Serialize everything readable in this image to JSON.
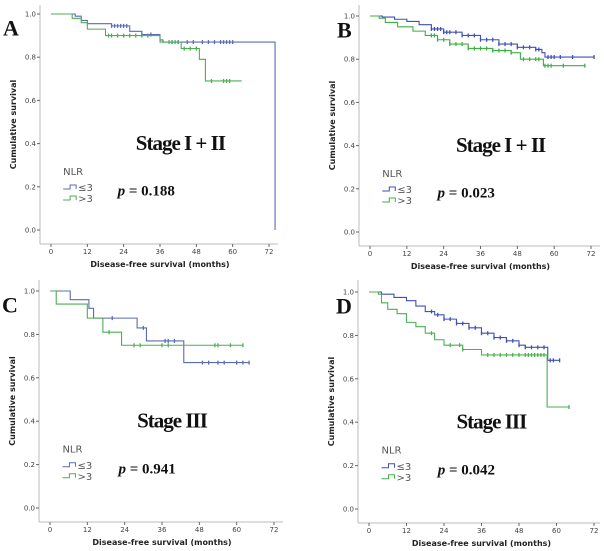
{
  "chart_data": [
    {
      "panel": "A",
      "type": "line",
      "subtype": "kaplan-meier step",
      "stage_label": "Stage I + II",
      "p_label": "p",
      "p_value": "= 0.188",
      "xlabel": "Disease-free survival (months)",
      "ylabel": "Cumulative survival",
      "xticks": [
        "0",
        "12",
        "24",
        "36",
        "48",
        "60",
        "72"
      ],
      "yticks": [
        "0.0",
        "0.2",
        "0.4",
        "0.6",
        "0.8",
        "1.0"
      ],
      "xlim": [
        0,
        72
      ],
      "ylim": [
        0,
        1
      ],
      "legend_title": "NLR",
      "legend_placement": "bottom-left",
      "series": [
        {
          "name": "≤3",
          "color": "#5b6bb5",
          "steps": [
            [
              0,
              1
            ],
            [
              8,
              0.99
            ],
            [
              10,
              0.97
            ],
            [
              12,
              0.955
            ],
            [
              20,
              0.945
            ],
            [
              26,
              0.92
            ],
            [
              30,
              0.905
            ],
            [
              36,
              0.88
            ],
            [
              37,
              0.87
            ],
            [
              74,
              0.87
            ],
            [
              74,
              0
            ]
          ],
          "censored": [
            20,
            21,
            22,
            23,
            24,
            25,
            30,
            33,
            40,
            42,
            45,
            47,
            50,
            52,
            54,
            56,
            57,
            58,
            59,
            60
          ]
        },
        {
          "name": ">3",
          "color": "#4caf50",
          "steps": [
            [
              0,
              1
            ],
            [
              7,
              0.98
            ],
            [
              10,
              0.96
            ],
            [
              12,
              0.93
            ],
            [
              18,
              0.9
            ],
            [
              34,
              0.9
            ],
            [
              36,
              0.87
            ],
            [
              43,
              0.84
            ],
            [
              49,
              0.79
            ],
            [
              51,
              0.69
            ],
            [
              63,
              0.69
            ]
          ],
          "censored": [
            19,
            20,
            22,
            24,
            26,
            28,
            30,
            32,
            39,
            41,
            44,
            46,
            48,
            53,
            57,
            58,
            59
          ]
        }
      ]
    },
    {
      "panel": "B",
      "type": "line",
      "subtype": "kaplan-meier step",
      "stage_label": "Stage I + II",
      "p_label": "p",
      "p_value": "= 0.023",
      "xlabel": "Disease-free survival (months)",
      "ylabel": "Cumulative survival",
      "xticks": [
        "0",
        "12",
        "24",
        "36",
        "48",
        "60",
        "72"
      ],
      "yticks": [
        "0.0",
        "0.2",
        "0.4",
        "0.6",
        "0.8",
        "1.0"
      ],
      "xlim": [
        0,
        72
      ],
      "ylim": [
        0,
        1
      ],
      "legend_title": "NLR",
      "legend_placement": "bottom-left",
      "series": [
        {
          "name": "≤3",
          "color": "#3f51b5",
          "steps": [
            [
              0,
              1
            ],
            [
              4,
              0.995
            ],
            [
              8,
              0.985
            ],
            [
              12,
              0.975
            ],
            [
              16,
              0.96
            ],
            [
              20,
              0.94
            ],
            [
              24,
              0.925
            ],
            [
              30,
              0.91
            ],
            [
              36,
              0.89
            ],
            [
              42,
              0.87
            ],
            [
              48,
              0.855
            ],
            [
              54,
              0.845
            ],
            [
              56,
              0.83
            ],
            [
              57,
              0.81
            ],
            [
              73,
              0.81
            ]
          ],
          "censored": [
            20,
            21,
            22,
            23,
            24,
            25,
            26,
            28,
            30,
            32,
            34,
            36,
            38,
            40,
            42,
            44,
            46,
            48,
            50,
            52,
            54,
            55,
            58,
            59,
            60,
            62,
            66,
            73
          ]
        },
        {
          "name": ">3",
          "color": "#3cb043",
          "steps": [
            [
              0,
              1
            ],
            [
              3,
              0.99
            ],
            [
              5,
              0.97
            ],
            [
              9,
              0.95
            ],
            [
              14,
              0.93
            ],
            [
              18,
              0.91
            ],
            [
              22,
              0.89
            ],
            [
              26,
              0.87
            ],
            [
              32,
              0.85
            ],
            [
              40,
              0.84
            ],
            [
              46,
              0.83
            ],
            [
              49,
              0.8
            ],
            [
              56,
              0.8
            ],
            [
              56.5,
              0.77
            ],
            [
              70,
              0.77
            ]
          ],
          "censored": [
            20,
            21,
            22,
            24,
            26,
            28,
            30,
            32,
            34,
            36,
            38,
            40,
            42,
            44,
            46,
            50,
            52,
            54,
            55,
            57,
            58,
            59,
            63,
            70
          ]
        }
      ]
    },
    {
      "panel": "C",
      "type": "line",
      "subtype": "kaplan-meier step",
      "stage_label": "Stage III",
      "p_label": "p",
      "p_value": "= 0.941",
      "xlabel": "Disease-free survival (months)",
      "ylabel": "Cumulative survival",
      "xticks": [
        "0",
        "12",
        "24",
        "36",
        "48",
        "60",
        "72"
      ],
      "yticks": [
        "0.0",
        "0.2",
        "0.4",
        "0.6",
        "0.8",
        "1.0"
      ],
      "xlim": [
        0,
        72
      ],
      "ylim": [
        0,
        1
      ],
      "legend_title": "NLR",
      "legend_placement": "bottom-left",
      "series": [
        {
          "name": "≤3",
          "color": "#5b6bb5",
          "steps": [
            [
              0,
              1
            ],
            [
              6.5,
              0.96
            ],
            [
              12.5,
              0.92
            ],
            [
              14,
              0.875
            ],
            [
              28,
              0.83
            ],
            [
              31,
              0.77
            ],
            [
              43,
              0.67
            ],
            [
              64,
              0.67
            ]
          ],
          "censored": [
            20,
            30,
            37,
            38,
            40,
            49,
            51,
            54,
            56,
            60,
            62,
            64
          ]
        },
        {
          "name": ">3",
          "color": "#4caf50",
          "steps": [
            [
              0,
              1
            ],
            [
              2,
              0.94
            ],
            [
              12,
              0.875
            ],
            [
              17,
              0.81
            ],
            [
              23,
              0.75
            ],
            [
              62,
              0.75
            ]
          ],
          "censored": [
            19,
            27,
            29,
            36,
            38,
            53,
            54,
            58,
            62
          ]
        }
      ]
    },
    {
      "panel": "D",
      "type": "line",
      "subtype": "kaplan-meier step",
      "stage_label": "Stage III",
      "p_label": "p",
      "p_value": "= 0.042",
      "xlabel": "Disease-free survival (months)",
      "ylabel": "Cumulative survival",
      "xticks": [
        "0",
        "12",
        "24",
        "36",
        "48",
        "60",
        "72"
      ],
      "yticks": [
        "0.0",
        "0.2",
        "0.4",
        "0.6",
        "0.8",
        "1.0"
      ],
      "xlim": [
        0,
        72
      ],
      "ylim": [
        0,
        1
      ],
      "legend_title": "NLR",
      "legend_placement": "bottom-left",
      "series": [
        {
          "name": "≤3",
          "color": "#3f51b5",
          "steps": [
            [
              0,
              1
            ],
            [
              4,
              0.99
            ],
            [
              8,
              0.975
            ],
            [
              12,
              0.96
            ],
            [
              15,
              0.935
            ],
            [
              18,
              0.91
            ],
            [
              21,
              0.895
            ],
            [
              24,
              0.875
            ],
            [
              28,
              0.855
            ],
            [
              32,
              0.835
            ],
            [
              36,
              0.81
            ],
            [
              40,
              0.79
            ],
            [
              44,
              0.775
            ],
            [
              48,
              0.755
            ],
            [
              50,
              0.745
            ],
            [
              57,
              0.745
            ],
            [
              57.2,
              0.685
            ],
            [
              61,
              0.685
            ]
          ],
          "censored": [
            20,
            22,
            24,
            26,
            28,
            30,
            32,
            34,
            36,
            38,
            40,
            42,
            44,
            46,
            48,
            50,
            52,
            54,
            56,
            58,
            59,
            61
          ]
        },
        {
          "name": ">3",
          "color": "#4caf50",
          "steps": [
            [
              0,
              1
            ],
            [
              3,
              0.99
            ],
            [
              4,
              0.95
            ],
            [
              6,
              0.92
            ],
            [
              9,
              0.9
            ],
            [
              12,
              0.86
            ],
            [
              15,
              0.84
            ],
            [
              18,
              0.81
            ],
            [
              21,
              0.78
            ],
            [
              24,
              0.755
            ],
            [
              30,
              0.735
            ],
            [
              36,
              0.71
            ],
            [
              57,
              0.71
            ],
            [
              57,
              0.47
            ],
            [
              64,
              0.47
            ]
          ],
          "censored": [
            20,
            26,
            29,
            30,
            38,
            40,
            42,
            44,
            46,
            48,
            50,
            51,
            52,
            53,
            54,
            55,
            56,
            64
          ]
        }
      ]
    }
  ]
}
